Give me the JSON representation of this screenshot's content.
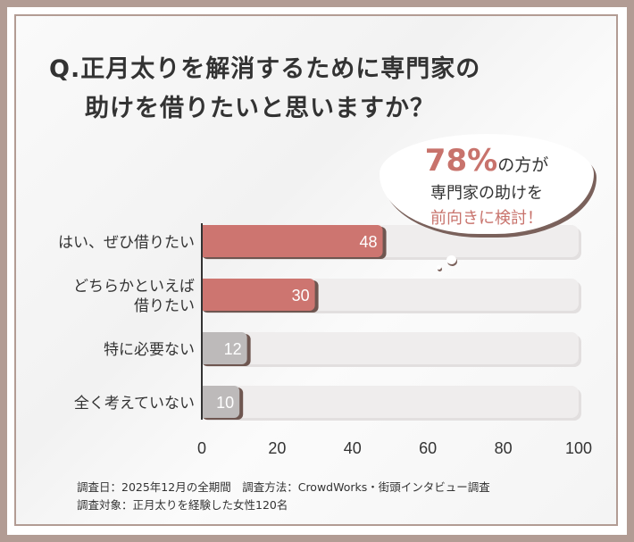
{
  "title": [
    "Q.正月太りを解消するために専門家の",
    "助けを借りたいと思いますか？"
  ],
  "callout": {
    "percent": "78%",
    "line1_suffix": "の方が",
    "line2": "専門家の助けを",
    "line3": "前向きに検討！"
  },
  "footer": [
    "調査日：2025年12月の全期間　調査方法：CrowdWorks・街頭インタビュー調査",
    "調査対象：正月太りを経験した女性120名"
  ],
  "colors": {
    "accent": "#cd7570",
    "gray": "#bdbaba",
    "track": "#efeded",
    "shadow": "#6e5650"
  },
  "chart_data": {
    "type": "bar",
    "orientation": "horizontal",
    "categories": [
      [
        "はい、ぜひ借りたい"
      ],
      [
        "どちらかといえば",
        "借りたい"
      ],
      [
        "特に必要ない"
      ],
      [
        "全く考えていない"
      ]
    ],
    "values": [
      48,
      30,
      12,
      10
    ],
    "bar_colors": [
      "#cd7570",
      "#cd7570",
      "#bdbaba",
      "#bdbaba"
    ],
    "xlim": [
      0,
      100
    ],
    "xticks": [
      0,
      20,
      40,
      60,
      80,
      100
    ],
    "grid": false
  }
}
